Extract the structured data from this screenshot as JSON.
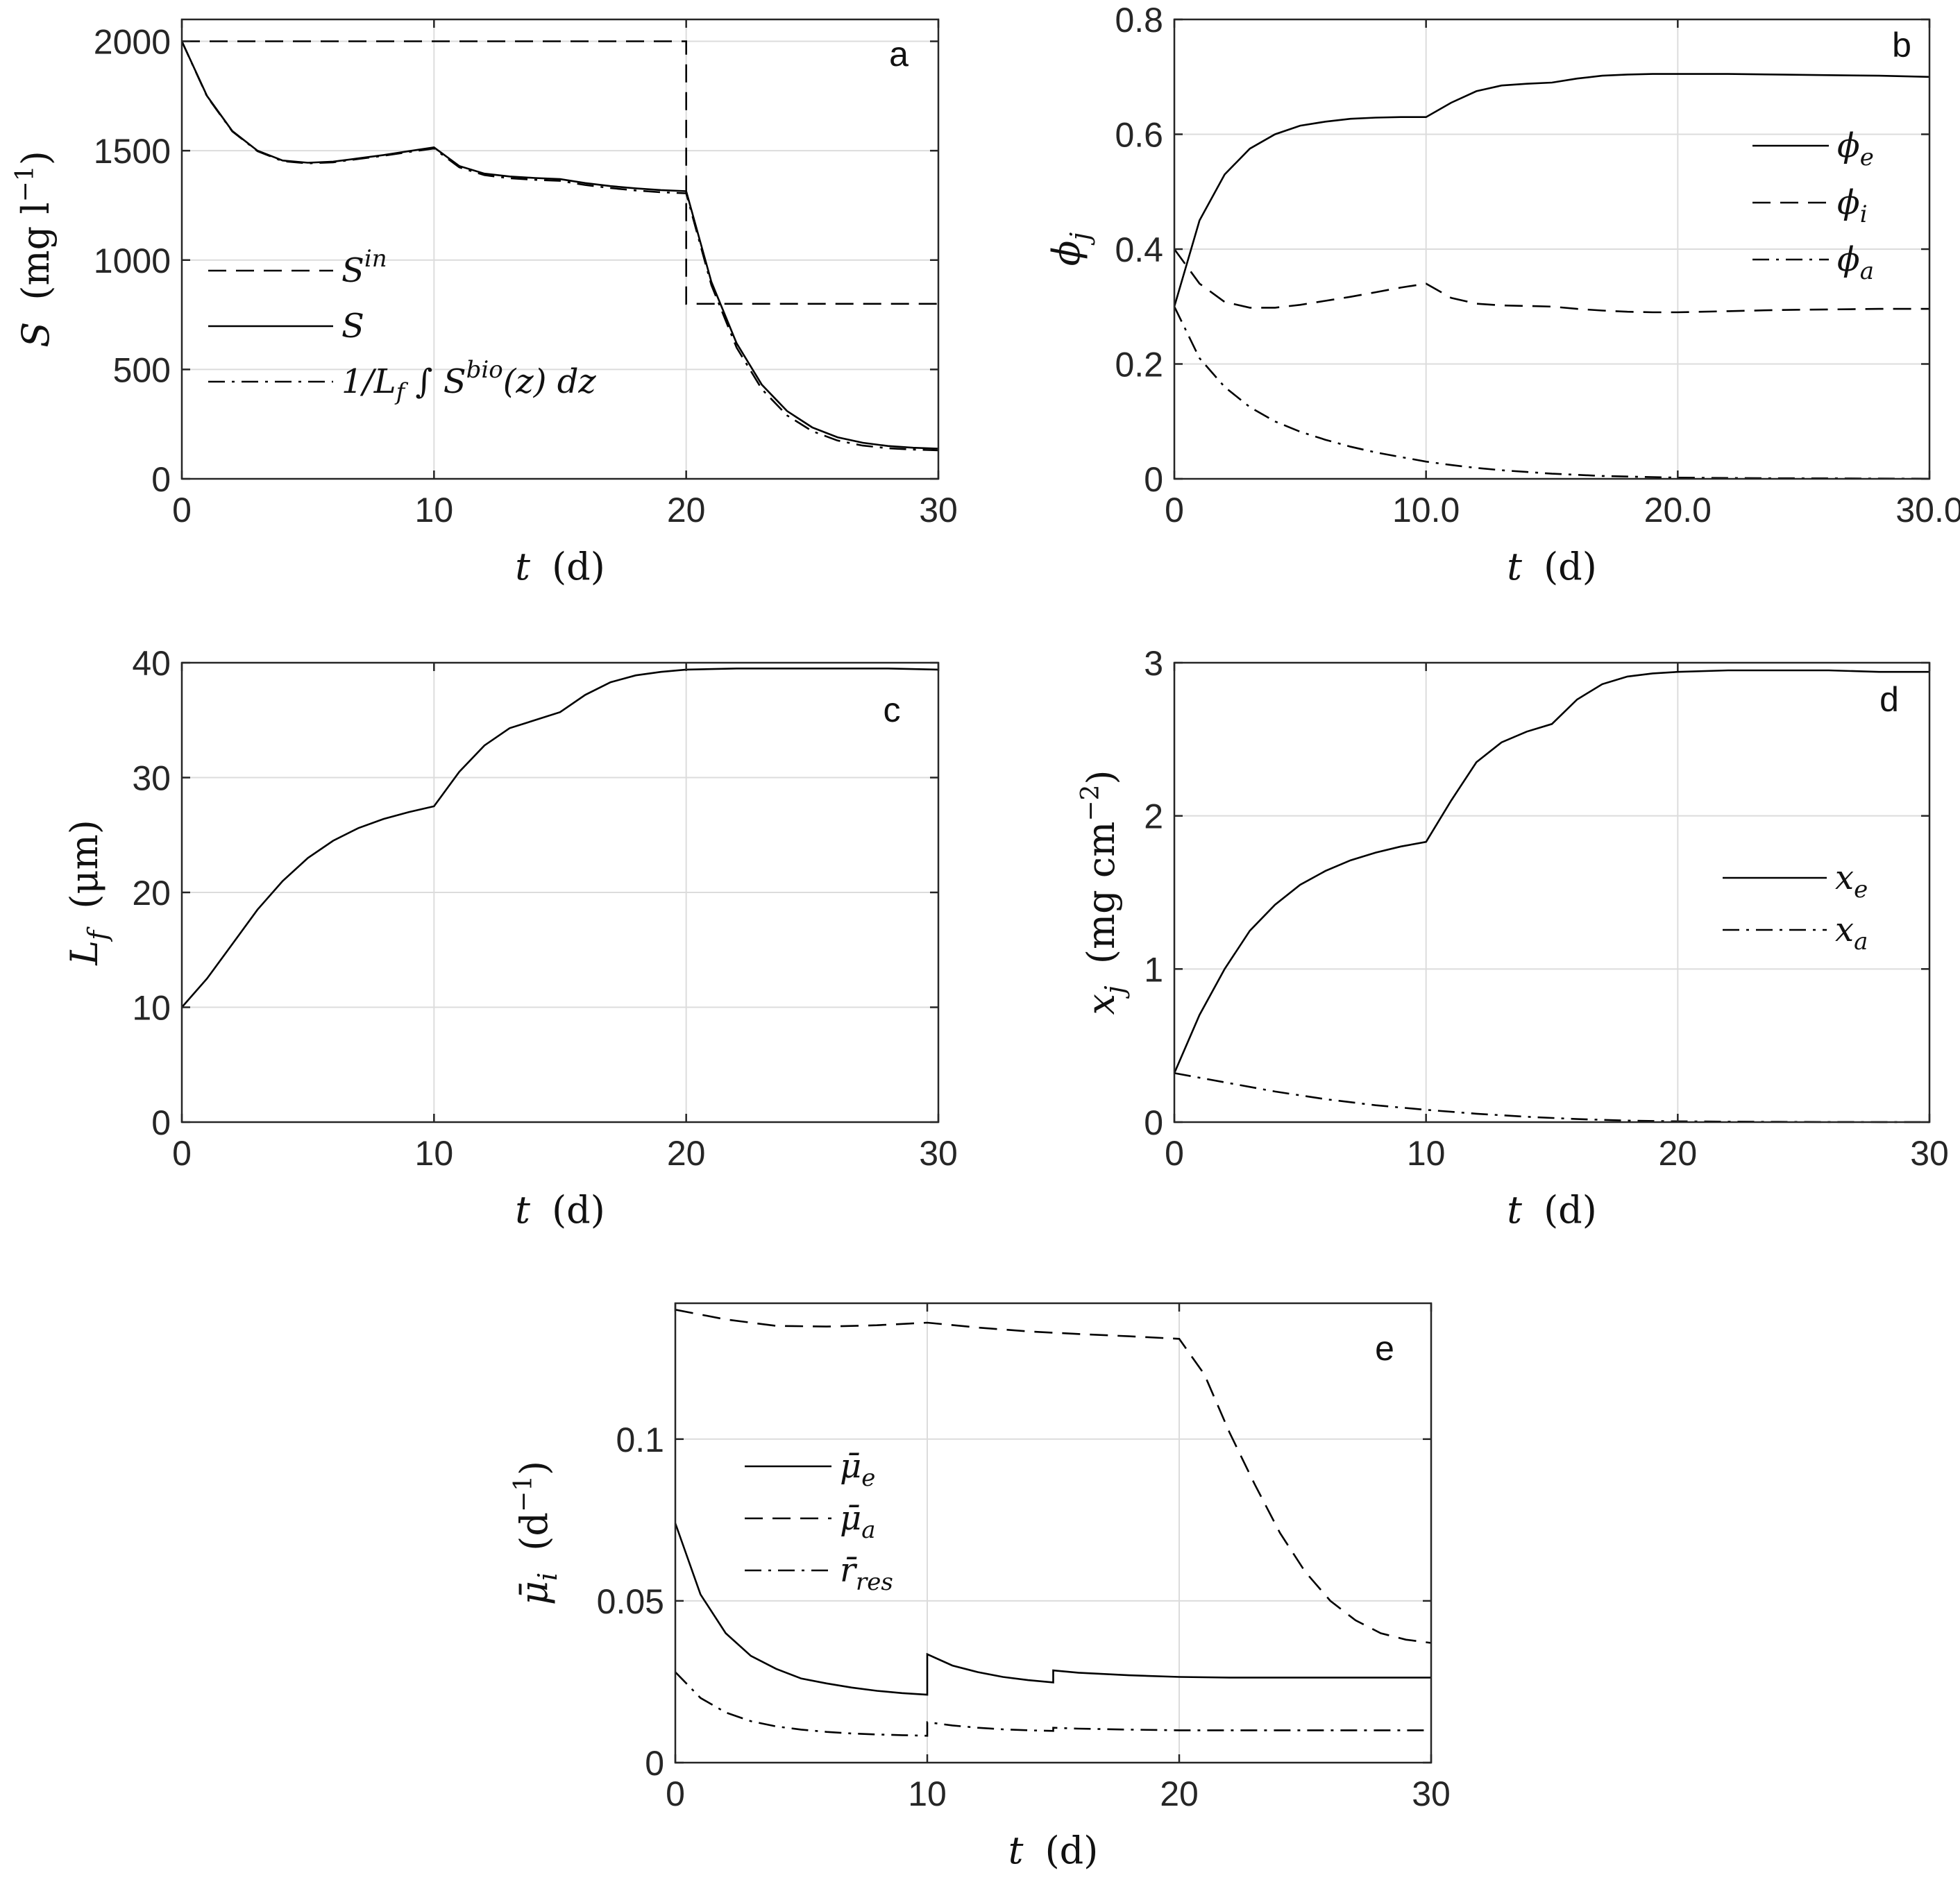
{
  "chart_data": [
    {
      "id": "a",
      "type": "line",
      "panel_label": "a",
      "xlabel_var": "t",
      "xlabel_unit": "(d)",
      "ylabel_var": "S",
      "ylabel_unit": "(mg l",
      "ylabel_unit_sup": "−1",
      "ylabel_unit_close": ")",
      "xlim": [
        0,
        30
      ],
      "ylim": [
        0,
        2100
      ],
      "xticks": [
        0,
        10,
        20,
        30
      ],
      "yticks": [
        0,
        500,
        1000,
        1500,
        2000
      ],
      "series": [
        {
          "name": "S^in",
          "style": "dashed",
          "x": [
            0,
            20,
            20,
            30
          ],
          "y": [
            2000,
            2000,
            800,
            800
          ]
        },
        {
          "name": "S",
          "style": "solid",
          "x": [
            0,
            1,
            2,
            3,
            4,
            5,
            6,
            7,
            8,
            9,
            10,
            11,
            12,
            13,
            14,
            15,
            16,
            17,
            18,
            19,
            20,
            21,
            22,
            23,
            24,
            25,
            26,
            27,
            28,
            29,
            30
          ],
          "y": [
            2000,
            1750,
            1590,
            1500,
            1455,
            1445,
            1450,
            1465,
            1480,
            1498,
            1515,
            1430,
            1395,
            1382,
            1375,
            1370,
            1352,
            1338,
            1328,
            1320,
            1315,
            900,
            620,
            430,
            310,
            235,
            190,
            165,
            150,
            142,
            138
          ]
        },
        {
          "name": "1/L_f ∫ S^bio(z) dz",
          "style": "dashdot",
          "x": [
            0,
            1,
            2,
            3,
            4,
            5,
            6,
            7,
            8,
            9,
            10,
            11,
            12,
            13,
            14,
            15,
            16,
            17,
            18,
            19,
            20,
            21,
            22,
            23,
            24,
            25,
            26,
            27,
            28,
            29,
            30
          ],
          "y": [
            2000,
            1748,
            1588,
            1498,
            1452,
            1442,
            1447,
            1462,
            1477,
            1494,
            1510,
            1424,
            1388,
            1374,
            1367,
            1362,
            1343,
            1329,
            1318,
            1310,
            1305,
            885,
            600,
            410,
            290,
            218,
            175,
            152,
            140,
            134,
            130
          ]
        }
      ],
      "legend": {
        "position": "bottom-left"
      }
    },
    {
      "id": "b",
      "type": "line",
      "panel_label": "b",
      "xlabel_var": "t",
      "xlabel_unit": "(d)",
      "ylabel_var": "ϕ",
      "ylabel_sub": "j",
      "xlim": [
        0,
        30
      ],
      "ylim": [
        0,
        0.8
      ],
      "xticks": [
        0,
        10,
        20,
        30
      ],
      "yticks": [
        0,
        0.2,
        0.4,
        0.6,
        0.8
      ],
      "series": [
        {
          "name": "ϕ_e",
          "style": "solid",
          "x": [
            0,
            1,
            2,
            3,
            4,
            5,
            6,
            7,
            8,
            9,
            10,
            11,
            12,
            13,
            14,
            15,
            16,
            17,
            18,
            19,
            20,
            22,
            24,
            26,
            28,
            30
          ],
          "y": [
            0.3,
            0.45,
            0.53,
            0.575,
            0.6,
            0.615,
            0.622,
            0.627,
            0.629,
            0.63,
            0.63,
            0.655,
            0.675,
            0.685,
            0.688,
            0.69,
            0.697,
            0.702,
            0.704,
            0.705,
            0.705,
            0.705,
            0.704,
            0.703,
            0.702,
            0.7
          ]
        },
        {
          "name": "ϕ_i",
          "style": "dashed",
          "x": [
            0,
            1,
            2,
            3,
            4,
            5,
            6,
            7,
            8,
            9,
            10,
            11,
            12,
            13,
            14,
            15,
            16,
            17,
            18,
            19,
            20,
            22,
            24,
            26,
            28,
            30
          ],
          "y": [
            0.4,
            0.34,
            0.308,
            0.298,
            0.298,
            0.303,
            0.31,
            0.317,
            0.325,
            0.333,
            0.34,
            0.315,
            0.305,
            0.302,
            0.301,
            0.3,
            0.296,
            0.293,
            0.291,
            0.29,
            0.29,
            0.292,
            0.294,
            0.295,
            0.296,
            0.296
          ]
        },
        {
          "name": "ϕ_a",
          "style": "dashdot",
          "x": [
            0,
            1,
            2,
            3,
            4,
            5,
            6,
            7,
            8,
            9,
            10,
            11,
            12,
            13,
            14,
            15,
            16,
            17,
            18,
            19,
            20,
            22,
            24,
            26,
            28,
            30
          ],
          "y": [
            0.3,
            0.21,
            0.16,
            0.125,
            0.1,
            0.082,
            0.068,
            0.056,
            0.046,
            0.038,
            0.03,
            0.024,
            0.019,
            0.015,
            0.012,
            0.009,
            0.007,
            0.005,
            0.004,
            0.003,
            0.002,
            0.0015,
            0.001,
            0.0008,
            0.0005,
            0.0003
          ]
        }
      ],
      "legend": {
        "position": "top-right"
      }
    },
    {
      "id": "c",
      "type": "line",
      "panel_label": "c",
      "xlabel_var": "t",
      "xlabel_unit": "(d)",
      "ylabel_var": "L",
      "ylabel_sub": "f",
      "ylabel_unit": "(μm)",
      "xlim": [
        0,
        30
      ],
      "ylim": [
        0,
        40
      ],
      "xticks": [
        0,
        10,
        20,
        30
      ],
      "yticks": [
        0,
        10,
        20,
        30,
        40
      ],
      "series": [
        {
          "name": "L_f",
          "style": "solid",
          "x": [
            0,
            1,
            2,
            3,
            4,
            5,
            6,
            7,
            8,
            9,
            10,
            11,
            12,
            13,
            14,
            15,
            16,
            17,
            18,
            19,
            20,
            22,
            24,
            26,
            28,
            30
          ],
          "y": [
            10,
            12.5,
            15.5,
            18.5,
            21,
            23,
            24.5,
            25.6,
            26.4,
            27.0,
            27.5,
            30.5,
            32.8,
            34.3,
            35.0,
            35.7,
            37.2,
            38.3,
            38.9,
            39.2,
            39.4,
            39.5,
            39.5,
            39.5,
            39.5,
            39.4
          ]
        }
      ],
      "legend": {
        "position": "none"
      }
    },
    {
      "id": "d",
      "type": "line",
      "panel_label": "d",
      "xlabel_var": "t",
      "xlabel_unit": "(d)",
      "ylabel_var": "x",
      "ylabel_sub": "j",
      "ylabel_unit": "(mg cm",
      "ylabel_unit_sup": "−2",
      "ylabel_unit_close": ")",
      "xlim": [
        0,
        30
      ],
      "ylim": [
        0,
        3
      ],
      "xticks": [
        0,
        10,
        20,
        30
      ],
      "yticks": [
        0,
        1,
        2,
        3
      ],
      "series": [
        {
          "name": "x_e",
          "style": "solid",
          "x": [
            0,
            1,
            2,
            3,
            4,
            5,
            6,
            7,
            8,
            9,
            10,
            11,
            12,
            13,
            14,
            15,
            16,
            17,
            18,
            19,
            20,
            22,
            24,
            26,
            28,
            30
          ],
          "y": [
            0.32,
            0.7,
            1.0,
            1.25,
            1.42,
            1.55,
            1.64,
            1.71,
            1.76,
            1.8,
            1.83,
            2.1,
            2.35,
            2.48,
            2.55,
            2.6,
            2.76,
            2.86,
            2.91,
            2.93,
            2.94,
            2.95,
            2.95,
            2.95,
            2.94,
            2.94
          ]
        },
        {
          "name": "x_a",
          "style": "dashdot",
          "x": [
            0,
            2,
            4,
            6,
            8,
            10,
            12,
            14,
            16,
            18,
            20,
            22,
            24,
            26,
            28,
            30
          ],
          "y": [
            0.32,
            0.26,
            0.2,
            0.15,
            0.11,
            0.08,
            0.055,
            0.035,
            0.02,
            0.01,
            0.005,
            0.003,
            0.002,
            0.001,
            0.0005,
            0.0002
          ]
        }
      ],
      "legend": {
        "position": "right"
      }
    },
    {
      "id": "e",
      "type": "line",
      "panel_label": "e",
      "xlabel_var": "t",
      "xlabel_unit": "(d)",
      "ylabel_var": "μ̄",
      "ylabel_sub": "i",
      "ylabel_unit": "(d",
      "ylabel_unit_sup": "−1",
      "ylabel_unit_close": ")",
      "xlim": [
        0,
        30
      ],
      "ylim": [
        0,
        0.142
      ],
      "xticks": [
        0,
        10,
        20,
        30
      ],
      "yticks": [
        0,
        0.05,
        0.1
      ],
      "series": [
        {
          "name": "μ̄_e",
          "style": "solid",
          "x": [
            0,
            1,
            2,
            3,
            4,
            5,
            6,
            7,
            8,
            9,
            10,
            10,
            11,
            12,
            13,
            14,
            15,
            15,
            16,
            18,
            20,
            22,
            25,
            30
          ],
          "y": [
            0.074,
            0.052,
            0.04,
            0.033,
            0.029,
            0.026,
            0.0245,
            0.0232,
            0.0222,
            0.0215,
            0.021,
            0.0335,
            0.03,
            0.028,
            0.0265,
            0.0255,
            0.0248,
            0.0285,
            0.0278,
            0.027,
            0.0265,
            0.0263,
            0.0263,
            0.0263
          ]
        },
        {
          "name": "μ̄_a",
          "style": "dashed",
          "x": [
            0,
            2,
            4,
            6,
            8,
            10,
            12,
            14,
            16,
            18,
            20,
            21,
            22,
            23,
            24,
            25,
            26,
            27,
            28,
            29,
            30
          ],
          "y": [
            0.14,
            0.137,
            0.135,
            0.1348,
            0.1352,
            0.136,
            0.1345,
            0.1333,
            0.1325,
            0.1318,
            0.131,
            0.12,
            0.102,
            0.086,
            0.071,
            0.059,
            0.05,
            0.044,
            0.04,
            0.038,
            0.037
          ]
        },
        {
          "name": "r̄_res",
          "style": "dashdot",
          "x": [
            0,
            1,
            2,
            3,
            4,
            5,
            6,
            7,
            8,
            9,
            10,
            10,
            11,
            12,
            13,
            14,
            15,
            15,
            16,
            18,
            20,
            22,
            25,
            30
          ],
          "y": [
            0.028,
            0.02,
            0.0155,
            0.0128,
            0.0112,
            0.0102,
            0.0095,
            0.009,
            0.0087,
            0.0085,
            0.0083,
            0.0125,
            0.0115,
            0.0108,
            0.0103,
            0.01,
            0.0098,
            0.0108,
            0.0105,
            0.0102,
            0.01,
            0.01,
            0.01,
            0.01
          ]
        }
      ],
      "legend": {
        "position": "left"
      }
    }
  ]
}
